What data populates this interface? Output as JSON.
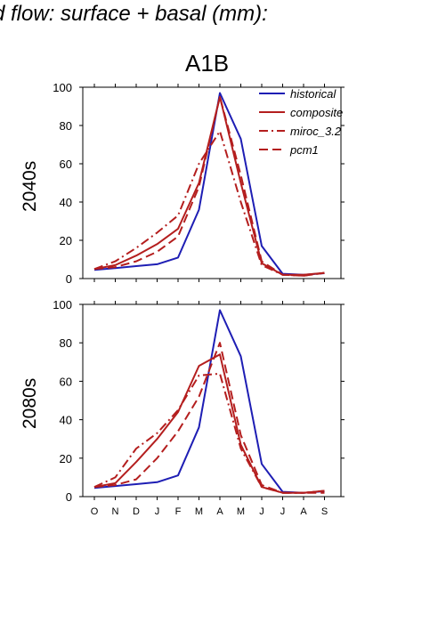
{
  "title": "d flow: surface + basal (mm):",
  "scenario": "A1B",
  "chart_data": [
    {
      "type": "line",
      "panel_label": "2040s",
      "x": [
        "O",
        "N",
        "D",
        "J",
        "F",
        "M",
        "A",
        "M",
        "J",
        "J",
        "A",
        "S"
      ],
      "ylim": [
        0,
        100
      ],
      "yticks": [
        0,
        20,
        40,
        60,
        80,
        100
      ],
      "grid": false,
      "legend_position": "top-right",
      "series": [
        {
          "name": "historical",
          "color": "#1e1eb4",
          "dash": "solid",
          "values": [
            4.5,
            5.5,
            6.5,
            7.5,
            11,
            36,
            97,
            73,
            17,
            2.5,
            2,
            2.8
          ]
        },
        {
          "name": "composite",
          "color": "#b41e1e",
          "dash": "solid",
          "values": [
            5,
            7,
            12,
            18,
            26,
            50,
            95,
            50,
            8,
            2,
            2,
            3
          ]
        },
        {
          "name": "miroc_3.2",
          "color": "#b41e1e",
          "dash": "dashdot",
          "values": [
            5,
            9,
            16,
            24,
            33,
            60,
            77,
            40,
            7,
            2,
            1.5,
            3
          ]
        },
        {
          "name": "pcm1",
          "color": "#b41e1e",
          "dash": "dashed",
          "values": [
            5,
            6,
            9,
            14,
            22,
            48,
            95,
            54,
            9,
            2,
            1.5,
            3
          ]
        }
      ]
    },
    {
      "type": "line",
      "panel_label": "2080s",
      "x": [
        "O",
        "N",
        "D",
        "J",
        "F",
        "M",
        "A",
        "M",
        "J",
        "J",
        "A",
        "S"
      ],
      "ylim": [
        0,
        100
      ],
      "yticks": [
        0,
        20,
        40,
        60,
        80,
        100
      ],
      "grid": false,
      "series": [
        {
          "name": "historical",
          "color": "#1e1eb4",
          "dash": "solid",
          "values": [
            4.5,
            5.5,
            6.5,
            7.5,
            11,
            36,
            97,
            73,
            17,
            2.5,
            2,
            2.8
          ]
        },
        {
          "name": "composite",
          "color": "#b41e1e",
          "dash": "solid",
          "values": [
            5,
            7,
            18,
            30,
            44,
            68,
            74,
            27,
            5,
            2,
            2,
            3
          ]
        },
        {
          "name": "miroc_3.2",
          "color": "#b41e1e",
          "dash": "dashdot",
          "values": [
            5,
            10,
            25,
            33,
            45,
            63,
            64,
            25,
            5,
            2,
            2,
            3
          ]
        },
        {
          "name": "pcm1",
          "color": "#b41e1e",
          "dash": "dashed",
          "values": [
            5,
            6,
            9,
            20,
            34,
            52,
            80,
            32,
            6,
            2,
            2,
            2
          ]
        }
      ]
    }
  ]
}
